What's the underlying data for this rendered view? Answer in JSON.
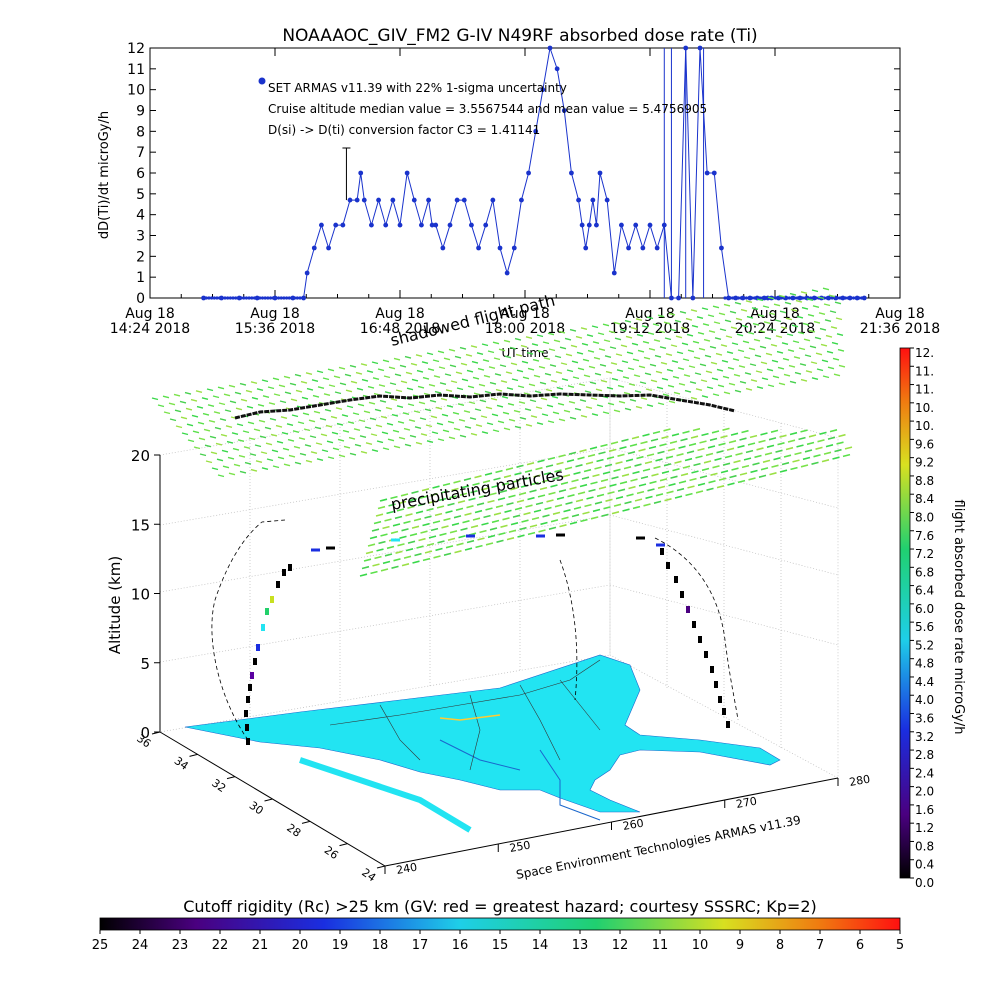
{
  "chart_data": [
    {
      "type": "line",
      "title": "NOAAAOC_GIV_FM2 G-IV    N49RF   absorbed dose rate (Ti)",
      "ylabel": "dD(Ti)/dt microGy/h",
      "xlabel": "UT time",
      "ylim": [
        0,
        12
      ],
      "yticks": [
        "0",
        "1",
        "2",
        "3",
        "4",
        "5",
        "6",
        "7",
        "8",
        "9",
        "10",
        "11",
        "12"
      ],
      "xlim": [
        0,
        420
      ],
      "xtick_labels": [
        {
          "day": "Aug 18",
          "time": "14:24 2018"
        },
        {
          "day": "Aug 18",
          "time": "15:36 2018"
        },
        {
          "day": "Aug 18",
          "time": "16:48 2018"
        },
        {
          "day": "Aug 18",
          "time": "18:00 2018"
        },
        {
          "day": "Aug 18",
          "time": "19:12 2018"
        },
        {
          "day": "Aug 18",
          "time": "20:24 2018"
        },
        {
          "day": "Aug 18",
          "time": "21:36 2018"
        }
      ],
      "legend_marker_color": "#1a33cc",
      "annotations": [
        "SET ARMAS v11.39 with 22% 1-sigma uncertainty",
        "Cruise altitude median value = 3.5567544 and mean value = 5.4756905",
        "D(si) -> D(ti) conversion factor C3 = 1.41141"
      ],
      "series": [
        {
          "color": "#1a33cc",
          "x": [
            30,
            40,
            50,
            60,
            70,
            80,
            86,
            88,
            92,
            96,
            100,
            104,
            108,
            112,
            116,
            118,
            120,
            124,
            128,
            132,
            136,
            140,
            144,
            148,
            152,
            156,
            158,
            160,
            164,
            168,
            172,
            176,
            180,
            184,
            188,
            192,
            196,
            200,
            204,
            208,
            212,
            216,
            220,
            224,
            228,
            232,
            236,
            240,
            242,
            244,
            246,
            248,
            250,
            252,
            256,
            260,
            264,
            268,
            272,
            276,
            280,
            284,
            288,
            292,
            296,
            300,
            304,
            308,
            312,
            316,
            320,
            324,
            328,
            332,
            336,
            340,
            344,
            346,
            348,
            352,
            356,
            360,
            364,
            368,
            372,
            376,
            380,
            384,
            388,
            392,
            396,
            400
          ],
          "y": [
            0,
            0,
            0,
            0,
            0,
            0,
            0,
            1.2,
            2.4,
            3.5,
            2.4,
            3.5,
            3.5,
            4.7,
            4.7,
            6,
            4.7,
            3.5,
            4.7,
            3.5,
            4.7,
            3.5,
            6,
            4.7,
            3.5,
            4.7,
            3.5,
            3.5,
            2.4,
            3.5,
            4.7,
            4.7,
            3.5,
            2.4,
            3.5,
            4.7,
            2.4,
            1.2,
            2.4,
            4.7,
            6,
            8,
            10,
            12,
            11,
            9,
            6,
            4.7,
            3.5,
            2.4,
            3.5,
            4.7,
            3.5,
            6,
            4.7,
            1.2,
            3.5,
            2.4,
            3.5,
            2.4,
            3.5,
            2.4,
            3.5,
            0,
            0,
            12,
            0,
            12,
            6,
            6,
            2.4,
            0,
            0,
            0,
            0,
            0,
            0,
            0,
            0,
            0,
            0,
            0,
            0,
            0,
            0,
            0,
            0,
            0,
            0,
            0,
            0,
            0
          ]
        }
      ],
      "error_bar": {
        "x": 110,
        "y": 4.7,
        "upper": 7.2
      },
      "spike_x": [
        288,
        292,
        300,
        310
      ]
    },
    {
      "type": "scatter",
      "title": "precipitating particles",
      "top_label": "shadowed flight path",
      "zlabel": "Altitude (km)",
      "zticks": [
        "0",
        "5",
        "10",
        "15",
        "20"
      ],
      "ylat_ticks": [
        "36",
        "34",
        "32",
        "30",
        "28",
        "26",
        "24"
      ],
      "xlon_ticks": [
        "240",
        "250",
        "260",
        "270",
        "280"
      ],
      "credit": "Space Environment Technologies ARMAS v11.39"
    },
    {
      "type": "heatmap",
      "title": "flight absorbed dose rate microGy/h",
      "colorbar_ticks": [
        "0.0",
        "0.4",
        "0.8",
        "1.2",
        "1.6",
        "2.0",
        "2.4",
        "2.8",
        "3.2",
        "3.6",
        "4.0",
        "4.4",
        "4.8",
        "5.2",
        "5.6",
        "6.0",
        "6.4",
        "6.8",
        "7.2",
        "7.6",
        "8.0",
        "8.4",
        "8.8",
        "9.2",
        "9.6",
        "10.",
        "10.",
        "11.",
        "11.",
        "12."
      ]
    },
    {
      "type": "heatmap",
      "title": "Cutoff rigidity (Rc) >25 km (GV: red = greatest hazard; courtesy SSSRC; Kp=2)",
      "colorbar_ticks": [
        "25",
        "24",
        "23",
        "22",
        "21",
        "20",
        "19",
        "18",
        "17",
        "16",
        "15",
        "14",
        "13",
        "12",
        "11",
        "10",
        "9",
        "8",
        "7",
        "6",
        "5"
      ]
    }
  ]
}
